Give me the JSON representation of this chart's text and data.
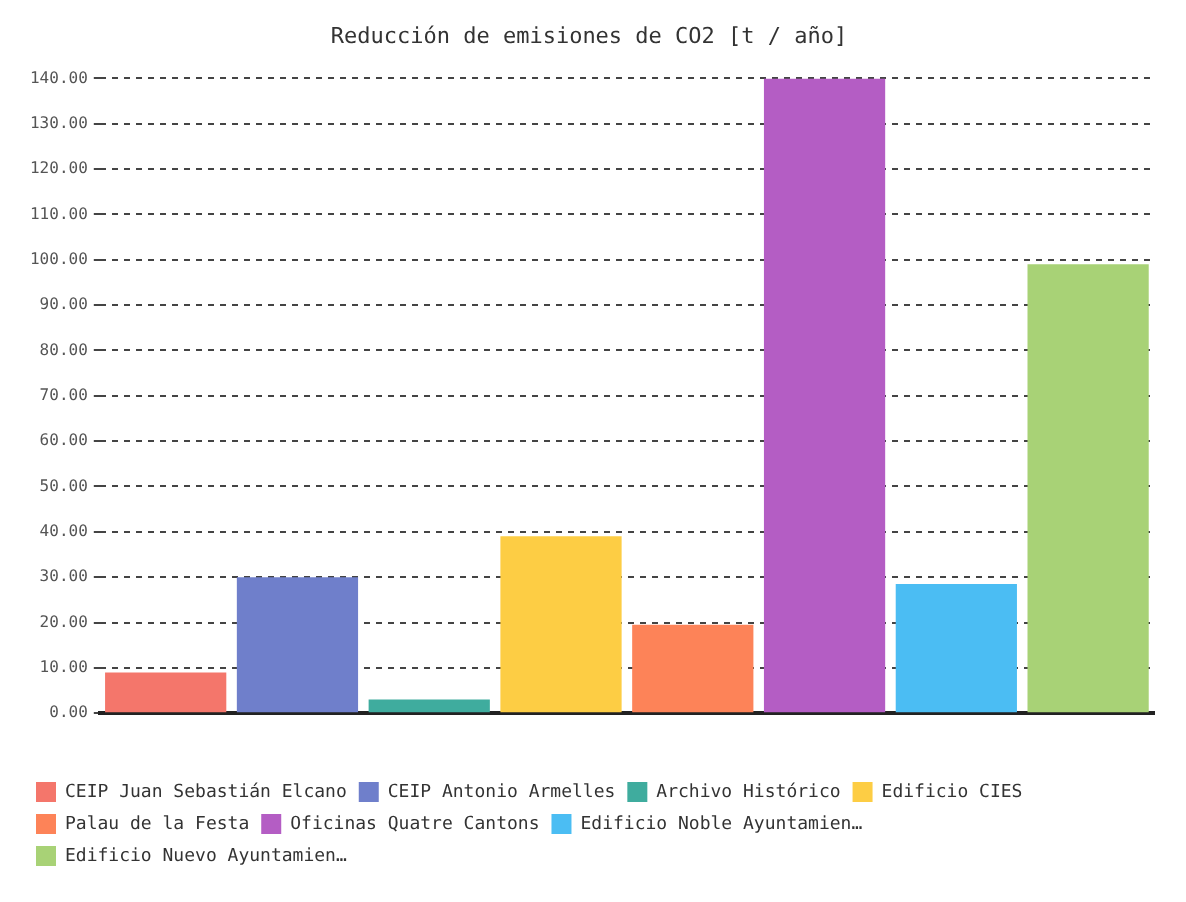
{
  "chart_data": {
    "type": "bar",
    "title": "Reducción de emisiones de CO2 [t / año]",
    "categories": [
      null,
      null,
      null,
      null,
      null,
      null,
      null,
      null
    ],
    "series": [
      {
        "name": "CEIP Juan Sebastián Elcano",
        "color": "#f4766b",
        "values": [
          9,
          null,
          null,
          null,
          null,
          null,
          null,
          null
        ]
      },
      {
        "name": "CEIP Antonio Armelles",
        "color": "#6f7fcb",
        "values": [
          null,
          30,
          null,
          null,
          null,
          null,
          null,
          null
        ]
      },
      {
        "name": "Archivo Histórico",
        "color": "#3fac9e",
        "values": [
          null,
          null,
          3,
          null,
          null,
          null,
          null,
          null
        ]
      },
      {
        "name": "Edificio CIES",
        "color": "#fdcd44",
        "values": [
          null,
          null,
          null,
          39,
          null,
          null,
          null,
          null
        ]
      },
      {
        "name": "Palau de la Festa",
        "color": "#fd8358",
        "values": [
          null,
          null,
          null,
          null,
          19.5,
          null,
          null,
          null
        ]
      },
      {
        "name": "Oficinas Quatre Cantons",
        "color": "#b45dc4",
        "values": [
          null,
          null,
          null,
          null,
          null,
          140,
          null,
          null
        ]
      },
      {
        "name": "Edificio Noble Ayuntamien…",
        "color": "#4bbdf3",
        "values": [
          null,
          null,
          null,
          null,
          null,
          null,
          28.5,
          null
        ]
      },
      {
        "name": "Edificio Nuevo Ayuntamien…",
        "color": "#a8d276",
        "values": [
          null,
          null,
          null,
          null,
          null,
          null,
          null,
          99
        ]
      }
    ],
    "ylim": [
      0,
      140
    ],
    "yticks": [
      {
        "value": 0,
        "label": "0.00"
      },
      {
        "value": 10,
        "label": "10.00"
      },
      {
        "value": 20,
        "label": "20.00"
      },
      {
        "value": 30,
        "label": "30.00"
      },
      {
        "value": 40,
        "label": "40.00"
      },
      {
        "value": 50,
        "label": "50.00"
      },
      {
        "value": 60,
        "label": "60.00"
      },
      {
        "value": 70,
        "label": "70.00"
      },
      {
        "value": 80,
        "label": "80.00"
      },
      {
        "value": 90,
        "label": "90.00"
      },
      {
        "value": 100,
        "label": "100.00"
      },
      {
        "value": 110,
        "label": "110.00"
      },
      {
        "value": 120,
        "label": "120.00"
      },
      {
        "value": 130,
        "label": "130.00"
      },
      {
        "value": 140,
        "label": "140.00"
      }
    ],
    "grid": "y",
    "legend": "bottom"
  }
}
